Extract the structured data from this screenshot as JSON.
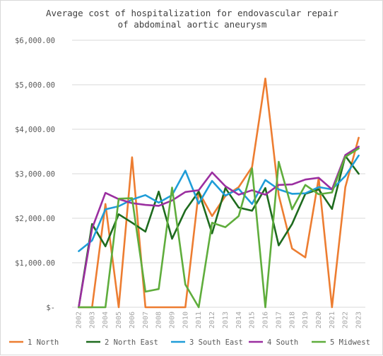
{
  "chart_data": {
    "type": "line",
    "title": "Average cost of hospitalization for endovascular repair of abdominal aortic aneurysm",
    "title_lines": [
      "Average cost of hospitalization for endovascular repair",
      "of abdominal aortic aneurysm"
    ],
    "categories": [
      "2002",
      "2003",
      "2004",
      "2005",
      "2006",
      "2007",
      "2008",
      "2009",
      "2010",
      "2011",
      "2012",
      "2013",
      "2014",
      "2015",
      "2016",
      "2017",
      "2018",
      "2019",
      "2020",
      "2021",
      "2022",
      "2023"
    ],
    "ylim": [
      0,
      6000
    ],
    "yticks": [
      0,
      1000,
      2000,
      3000,
      4000,
      5000,
      6000
    ],
    "ytick_labels": [
      "$-",
      "$1,000.00",
      "$2,000.00",
      "$3,000.00",
      "$4,000.00",
      "$5,000.00",
      "$6,000.00"
    ],
    "grid": "horizontal",
    "legend_position": "bottom",
    "xlabel": "",
    "ylabel": "",
    "series": [
      {
        "name": "1 North",
        "color": "#ed7d31",
        "values": [
          0,
          0,
          2320,
          0,
          3370,
          0,
          0,
          0,
          0,
          2600,
          2050,
          2500,
          2700,
          3150,
          5140,
          2520,
          1320,
          1120,
          2900,
          0,
          2700,
          3810
        ]
      },
      {
        "name": "2 North East",
        "color": "#1e6b1e",
        "values": [
          0,
          1870,
          1370,
          2090,
          1900,
          1700,
          2600,
          1540,
          2180,
          2600,
          1660,
          2680,
          2240,
          2170,
          2680,
          1390,
          1870,
          2550,
          2650,
          2210,
          3400,
          3000
        ]
      },
      {
        "name": "3 South East",
        "color": "#1f9dd8",
        "values": [
          1260,
          1500,
          2200,
          2270,
          2420,
          2520,
          2350,
          2520,
          3070,
          2330,
          2840,
          2510,
          2660,
          2320,
          2860,
          2650,
          2550,
          2560,
          2700,
          2650,
          2950,
          3410
        ]
      },
      {
        "name": "4 South",
        "color": "#9b2fa0",
        "values": [
          0,
          1770,
          2570,
          2430,
          2340,
          2300,
          2280,
          2400,
          2590,
          2630,
          3030,
          2720,
          2530,
          2630,
          2530,
          2750,
          2760,
          2870,
          2910,
          2650,
          3420,
          3610
        ]
      },
      {
        "name": "5 Midwest",
        "color": "#5fad3c",
        "values": [
          0,
          0,
          0,
          2440,
          2450,
          350,
          410,
          2690,
          510,
          0,
          1900,
          1800,
          2050,
          3120,
          0,
          3270,
          2200,
          2750,
          2540,
          2580,
          3380,
          3570
        ]
      }
    ]
  }
}
